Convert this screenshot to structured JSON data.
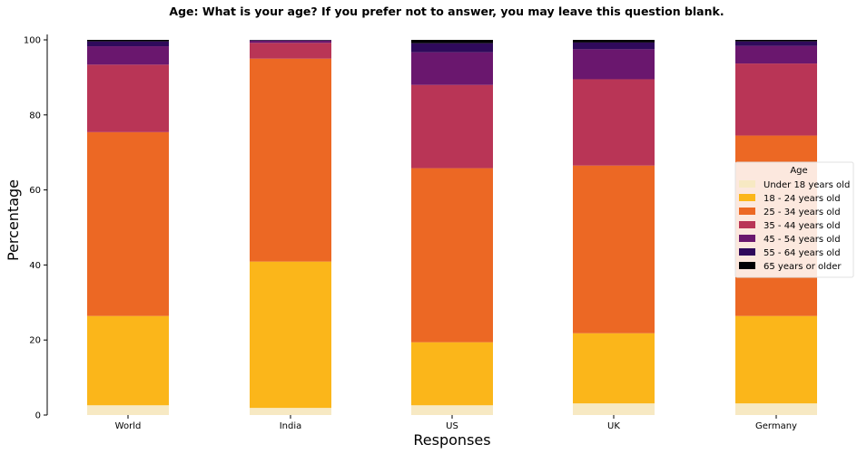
{
  "chart_data": {
    "type": "bar",
    "stacked": true,
    "title": "Age: What is your age? If you prefer not to answer, you may leave this question blank.",
    "xlabel": "Responses",
    "ylabel": "Percentage",
    "ylim": [
      0,
      100
    ],
    "yticks": [
      0,
      20,
      40,
      60,
      80,
      100
    ],
    "categories": [
      "World",
      "India",
      "US",
      "UK",
      "Germany"
    ],
    "legend": {
      "title": "Age",
      "placement": "right"
    },
    "series": [
      {
        "name": "Under 18 years old",
        "color": "#f7e9c3",
        "values": [
          2.6,
          1.9,
          2.6,
          3.1,
          3.1
        ]
      },
      {
        "name": "18 - 24 years old",
        "color": "#fbb61a",
        "values": [
          23.8,
          39.0,
          16.8,
          18.7,
          23.3
        ]
      },
      {
        "name": "25 - 34 years old",
        "color": "#ec6824",
        "values": [
          49.0,
          54.1,
          46.4,
          44.7,
          48.1
        ]
      },
      {
        "name": "35 - 44 years old",
        "color": "#b93556",
        "values": [
          18.0,
          4.2,
          22.2,
          23.0,
          19.2
        ]
      },
      {
        "name": "45 - 54 years old",
        "color": "#6a176e",
        "values": [
          4.9,
          0.6,
          8.7,
          8.0,
          4.7
        ]
      },
      {
        "name": "55 - 64 years old",
        "color": "#2f0a5b",
        "values": [
          1.3,
          0.1,
          2.4,
          1.8,
          1.2
        ]
      },
      {
        "name": "65 years or older",
        "color": "#000004",
        "values": [
          0.4,
          0.1,
          0.9,
          0.7,
          0.4
        ]
      }
    ]
  }
}
